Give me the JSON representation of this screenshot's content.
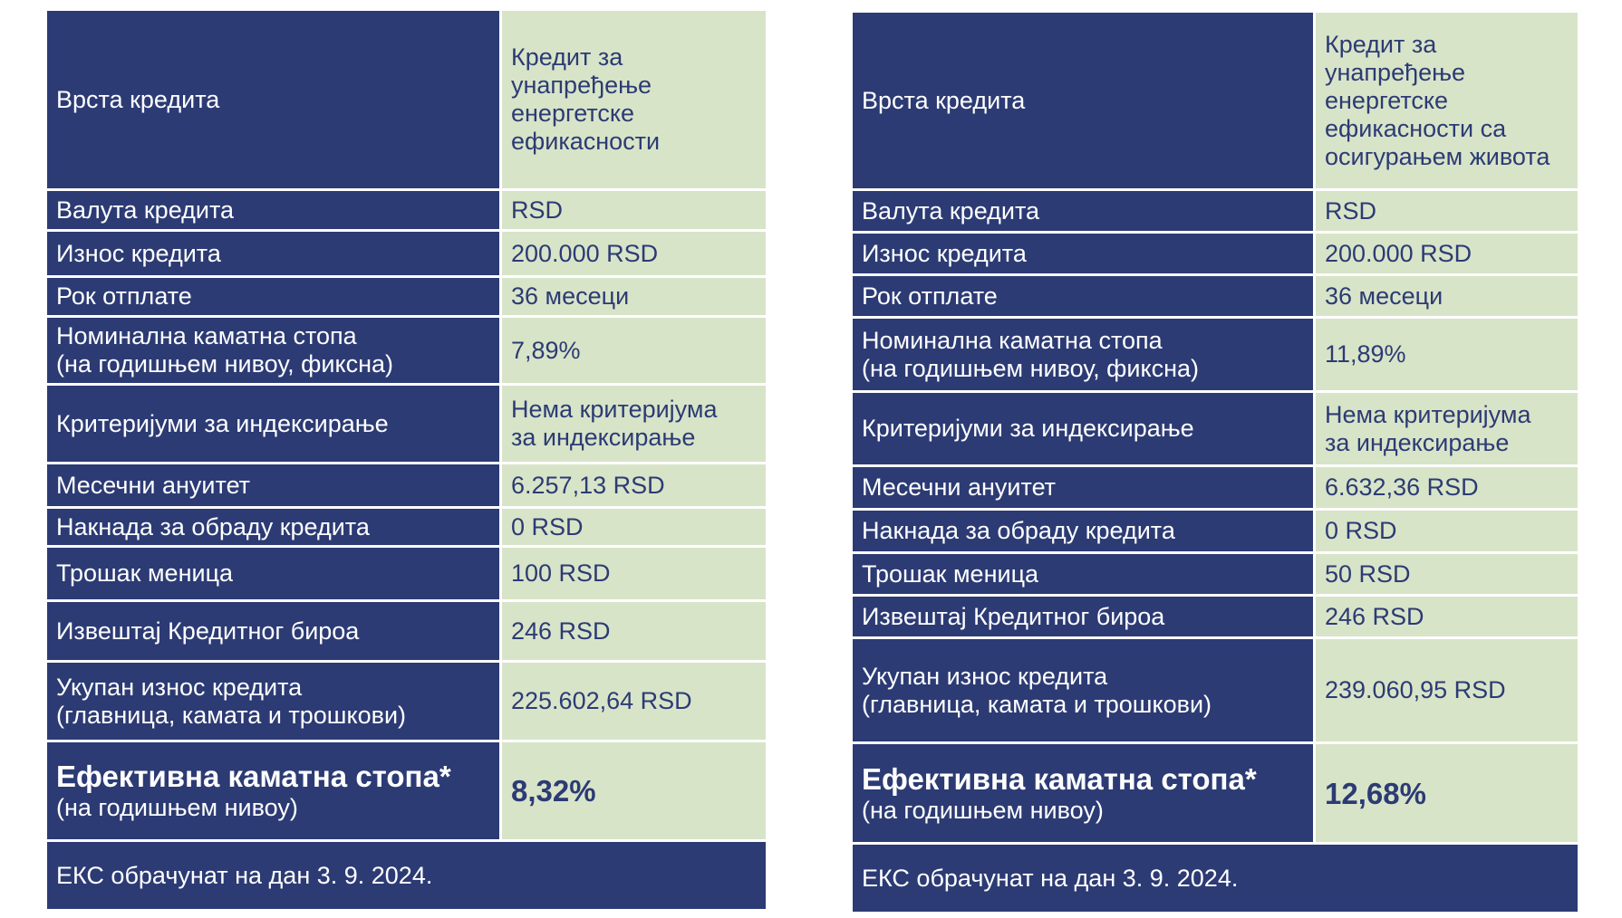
{
  "left": {
    "rows": [
      {
        "label": "Врста кредита",
        "value_lines": [
          "Кредит за",
          "унапређење",
          "енергетске",
          "ефикасности"
        ]
      },
      {
        "label": "Валута кредита",
        "value": "RSD"
      },
      {
        "label": "Износ кредита",
        "value": "200.000 RSD"
      },
      {
        "label": "Рок отплате",
        "value": "36 месеци"
      },
      {
        "label_lines": [
          "Номинална каматна стопа",
          "(на годишњем нивоу, фиксна)"
        ],
        "value": "7,89%"
      },
      {
        "label": "Критеријуми за индексирање",
        "value_lines": [
          "Нема критеријума",
          "за индексирање"
        ]
      },
      {
        "label": "Месечни ануитет",
        "value": "6.257,13 RSD"
      },
      {
        "label": "Накнада за обраду кредита",
        "value": "0 RSD"
      },
      {
        "label": "Трошак меница",
        "value": "100 RSD"
      },
      {
        "label": "Извештај Кредитног бироа",
        "value": "246 RSD"
      },
      {
        "label_lines": [
          "Укупан износ кредита",
          "(главница, камата и трошкови)"
        ],
        "value": "225.602,64 RSD"
      }
    ],
    "effective": {
      "title": "Ефективна каматна стопа*",
      "subtitle": "(на годишњем нивоу)",
      "value": "8,32%"
    },
    "footer": "ЕКС обрачунат на дан 3. 9. 2024."
  },
  "right": {
    "rows": [
      {
        "label": "Врста кредита",
        "value_lines": [
          "Кредит за",
          "унапређење",
          "енергетске",
          "ефикасности са",
          "осигурањем живота"
        ]
      },
      {
        "label": "Валута кредита",
        "value": "RSD"
      },
      {
        "label": "Износ кредита",
        "value": "200.000 RSD"
      },
      {
        "label": "Рок отплате",
        "value": "36 месеци"
      },
      {
        "label_lines": [
          "Номинална каматна стопа",
          "(на годишњем нивоу, фиксна)"
        ],
        "value": "11,89%"
      },
      {
        "label": "Критеријуми за индексирање",
        "value_lines": [
          "Нема критеријума",
          "за индексирање"
        ]
      },
      {
        "label": "Месечни ануитет",
        "value": "6.632,36 RSD"
      },
      {
        "label": "Накнада за обраду кредита",
        "value": "0 RSD"
      },
      {
        "label": "Трошак меница",
        "value": "50 RSD"
      },
      {
        "label": "Извештај Кредитног бироа",
        "value": "246 RSD"
      },
      {
        "label_lines": [
          "Укупан износ кредита",
          "(главница, камата и трошкови)"
        ],
        "value": "239.060,95 RSD"
      }
    ],
    "effective": {
      "title": "Ефективна каматна стопа*",
      "subtitle": "(на годишњем нивоу)",
      "value": "12,68%"
    },
    "footer": "ЕКС обрачунат на дан 3. 9. 2024."
  }
}
